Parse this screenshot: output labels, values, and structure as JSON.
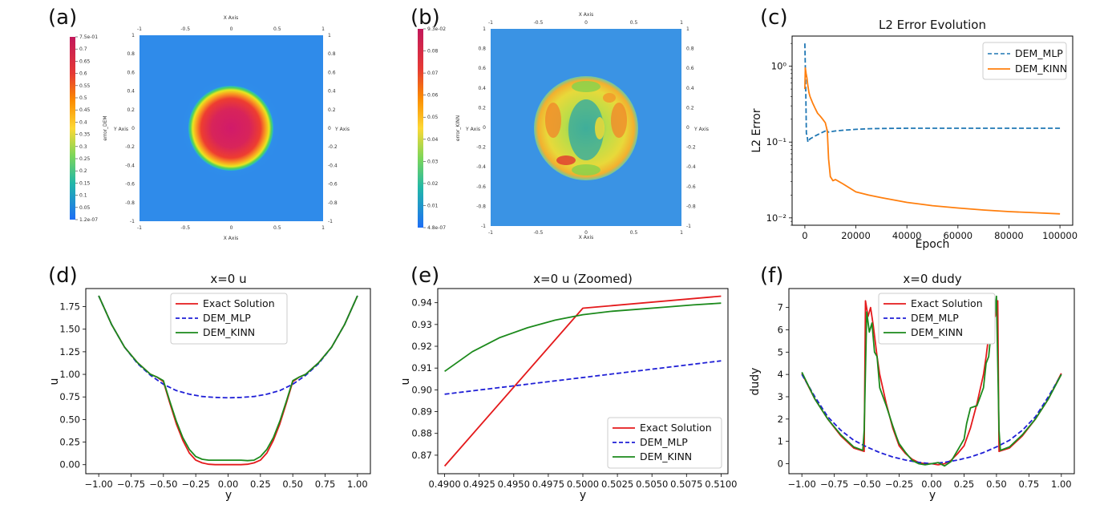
{
  "panels": {
    "a": "(a)",
    "b": "(b)",
    "c": "(c)",
    "d": "(d)",
    "e": "(e)",
    "f": "(f)"
  },
  "colors": {
    "exact": "#e41a1c",
    "dem_mlp": "#1f1fd6",
    "dem_kinn": "#1c8a1c",
    "c_mlp": "#1f77b4",
    "c_kinn": "#ff7f0e"
  },
  "chart_data": [
    {
      "id": "a",
      "type": "heatmap",
      "title": "",
      "xlabel": "X Axis",
      "ylabel": "Y Axis",
      "x_ticks": [
        "-1",
        "-0.5",
        "0",
        "0.5",
        "1"
      ],
      "y_ticks": [
        "1",
        "0.8",
        "0.6",
        "0.4",
        "0.2",
        "0",
        "-0.2",
        "-0.4",
        "-0.6",
        "-0.8",
        "-1"
      ],
      "colorbar_label": "error_DEM",
      "colorbar_ticks": [
        "7.5e-01",
        "0.7",
        "0.65",
        "0.6",
        "0.55",
        "0.5",
        "0.45",
        "0.4",
        "0.35",
        "0.3",
        "0.25",
        "0.2",
        "0.15",
        "0.1",
        "0.05",
        "1.2e-07"
      ]
    },
    {
      "id": "b",
      "type": "heatmap",
      "title": "",
      "xlabel": "X Axis",
      "ylabel": "Y Axis",
      "x_ticks": [
        "-1",
        "-0.5",
        "0",
        "0.5",
        "1"
      ],
      "y_ticks": [
        "1",
        "0.8",
        "0.6",
        "0.4",
        "0.2",
        "0",
        "-0.2",
        "-0.4",
        "-0.6",
        "-0.8",
        "-1"
      ],
      "colorbar_label": "error_KINN",
      "colorbar_ticks": [
        "9.3e-02",
        "0.08",
        "0.07",
        "0.06",
        "0.05",
        "0.04",
        "0.03",
        "0.02",
        "0.01",
        "4.8e-07"
      ]
    },
    {
      "id": "c",
      "type": "line",
      "title": "L2 Error Evolution",
      "xlabel": "Epoch",
      "ylabel": "L2 Error",
      "yscale": "log",
      "xlim": [
        -5000,
        105000
      ],
      "ylim": [
        0.008,
        2.5
      ],
      "x_ticks": [
        "0",
        "20000",
        "40000",
        "60000",
        "80000",
        "100000"
      ],
      "x_tick_values": [
        0,
        20000,
        40000,
        60000,
        80000,
        100000
      ],
      "y_ticks": [
        "10⁰",
        "10⁻¹",
        "10⁻²"
      ],
      "y_tick_values": [
        1,
        0.1,
        0.01
      ],
      "legend_position": "top-right",
      "series": [
        {
          "name": "DEM_MLP",
          "style": "dashed",
          "x": [
            0,
            300,
            600,
            900,
            1200,
            1600,
            2000,
            3000,
            4000,
            5000,
            6000,
            7000,
            8000,
            8500,
            9000,
            10000,
            12000,
            15000,
            20000,
            25000,
            30000,
            40000,
            50000,
            60000,
            70000,
            80000,
            90000,
            100000
          ],
          "y": [
            2.0,
            0.6,
            0.13,
            0.12,
            0.1,
            0.105,
            0.11,
            0.115,
            0.12,
            0.125,
            0.13,
            0.135,
            0.14,
            0.15,
            0.135,
            0.137,
            0.14,
            0.143,
            0.147,
            0.15,
            0.151,
            0.152,
            0.152,
            0.152,
            0.152,
            0.152,
            0.152,
            0.152
          ]
        },
        {
          "name": "DEM_KINN",
          "style": "solid",
          "x": [
            0,
            200,
            500,
            800,
            1200,
            1600,
            2000,
            3000,
            4000,
            5000,
            6000,
            7000,
            8000,
            8800,
            9300,
            10000,
            11000,
            12000,
            15000,
            20000,
            25000,
            30000,
            40000,
            50000,
            60000,
            70000,
            80000,
            90000,
            100000
          ],
          "y": [
            0.5,
            0.95,
            0.8,
            0.7,
            0.55,
            0.45,
            0.4,
            0.33,
            0.28,
            0.24,
            0.22,
            0.2,
            0.18,
            0.14,
            0.06,
            0.035,
            0.031,
            0.032,
            0.028,
            0.022,
            0.02,
            0.0185,
            0.016,
            0.0145,
            0.0135,
            0.0127,
            0.0121,
            0.0117,
            0.0113
          ]
        }
      ]
    },
    {
      "id": "d",
      "type": "line",
      "title": "x=0 u",
      "xlabel": "y",
      "ylabel": "u",
      "xlim": [
        -1.1,
        1.1
      ],
      "ylim": [
        -0.1,
        1.95
      ],
      "x_ticks": [
        "−1.00",
        "−0.75",
        "−0.50",
        "−0.25",
        "0.00",
        "0.25",
        "0.50",
        "0.75",
        "1.00"
      ],
      "x_tick_values": [
        -1,
        -0.75,
        -0.5,
        -0.25,
        0,
        0.25,
        0.5,
        0.75,
        1
      ],
      "y_ticks": [
        "0.00",
        "0.25",
        "0.50",
        "0.75",
        "1.00",
        "1.25",
        "1.50",
        "1.75"
      ],
      "y_tick_values": [
        0,
        0.25,
        0.5,
        0.75,
        1,
        1.25,
        1.5,
        1.75
      ],
      "legend_position": "upper-center",
      "series": [
        {
          "name": "Exact Solution",
          "style": "solid",
          "x": [
            -1,
            -0.9,
            -0.8,
            -0.7,
            -0.6,
            -0.55,
            -0.5,
            -0.45,
            -0.4,
            -0.35,
            -0.3,
            -0.25,
            -0.2,
            -0.15,
            -0.1,
            0,
            0.1,
            0.15,
            0.2,
            0.25,
            0.3,
            0.35,
            0.4,
            0.45,
            0.5,
            0.55,
            0.6,
            0.7,
            0.8,
            0.9,
            1
          ],
          "y": [
            1.87,
            1.55,
            1.3,
            1.13,
            1.0,
            0.97,
            0.92,
            0.68,
            0.45,
            0.27,
            0.13,
            0.05,
            0.02,
            0.005,
            0.0,
            0.0,
            0.0,
            0.005,
            0.02,
            0.05,
            0.13,
            0.27,
            0.45,
            0.68,
            0.92,
            0.97,
            1.0,
            1.13,
            1.3,
            1.55,
            1.87
          ]
        },
        {
          "name": "DEM_MLP",
          "style": "dashed",
          "x": [
            -1,
            -0.9,
            -0.8,
            -0.7,
            -0.6,
            -0.5,
            -0.4,
            -0.3,
            -0.2,
            -0.1,
            0,
            0.1,
            0.2,
            0.3,
            0.4,
            0.5,
            0.6,
            0.7,
            0.8,
            0.9,
            1
          ],
          "y": [
            1.87,
            1.55,
            1.3,
            1.12,
            0.99,
            0.89,
            0.82,
            0.78,
            0.755,
            0.745,
            0.74,
            0.745,
            0.755,
            0.78,
            0.82,
            0.89,
            0.99,
            1.12,
            1.3,
            1.55,
            1.87
          ]
        },
        {
          "name": "DEM_KINN",
          "style": "solid",
          "x": [
            -1,
            -0.9,
            -0.8,
            -0.7,
            -0.6,
            -0.55,
            -0.5,
            -0.45,
            -0.4,
            -0.35,
            -0.3,
            -0.25,
            -0.2,
            -0.15,
            -0.1,
            0,
            0.1,
            0.15,
            0.2,
            0.25,
            0.3,
            0.35,
            0.4,
            0.45,
            0.5,
            0.55,
            0.6,
            0.7,
            0.8,
            0.9,
            1
          ],
          "y": [
            1.87,
            1.55,
            1.3,
            1.13,
            1.0,
            0.97,
            0.93,
            0.7,
            0.48,
            0.3,
            0.17,
            0.09,
            0.06,
            0.05,
            0.05,
            0.05,
            0.05,
            0.045,
            0.05,
            0.09,
            0.17,
            0.3,
            0.48,
            0.7,
            0.93,
            0.97,
            1.0,
            1.13,
            1.3,
            1.55,
            1.87
          ]
        }
      ]
    },
    {
      "id": "e",
      "type": "line",
      "title": "x=0 u (Zoomed)",
      "xlabel": "y",
      "ylabel": "u",
      "xlim": [
        0.4895,
        0.5105
      ],
      "ylim": [
        0.8615,
        0.9465
      ],
      "x_ticks": [
        "0.4900",
        "0.4925",
        "0.4950",
        "0.4975",
        "0.5000",
        "0.5025",
        "0.5050",
        "0.5075",
        "0.5100"
      ],
      "x_tick_values": [
        0.49,
        0.4925,
        0.495,
        0.4975,
        0.5,
        0.5025,
        0.505,
        0.5075,
        0.51
      ],
      "y_ticks": [
        "0.87",
        "0.88",
        "0.89",
        "0.90",
        "0.91",
        "0.92",
        "0.93",
        "0.94"
      ],
      "y_tick_values": [
        0.87,
        0.88,
        0.89,
        0.9,
        0.91,
        0.92,
        0.93,
        0.94
      ],
      "legend_position": "lower-right",
      "series": [
        {
          "name": "Exact Solution",
          "style": "solid",
          "x": [
            0.49,
            0.5,
            0.51
          ],
          "y": [
            0.865,
            0.9375,
            0.943
          ]
        },
        {
          "name": "DEM_MLP",
          "style": "dashed",
          "x": [
            0.49,
            0.51
          ],
          "y": [
            0.898,
            0.9133
          ]
        },
        {
          "name": "DEM_KINN",
          "style": "solid",
          "x": [
            0.49,
            0.492,
            0.494,
            0.496,
            0.498,
            0.5,
            0.502,
            0.504,
            0.506,
            0.508,
            0.51
          ],
          "y": [
            0.9085,
            0.9175,
            0.924,
            0.9285,
            0.932,
            0.9345,
            0.936,
            0.937,
            0.938,
            0.939,
            0.9398
          ]
        }
      ]
    },
    {
      "id": "f",
      "type": "line",
      "title": "x=0 dudy",
      "xlabel": "y",
      "ylabel": "dudy",
      "xlim": [
        -1.1,
        1.1
      ],
      "ylim": [
        -0.45,
        7.85
      ],
      "x_ticks": [
        "−1.00",
        "−0.75",
        "−0.50",
        "−0.25",
        "0.00",
        "0.25",
        "0.50",
        "0.75",
        "1.00"
      ],
      "x_tick_values": [
        -1,
        -0.75,
        -0.5,
        -0.25,
        0,
        0.25,
        0.5,
        0.75,
        1
      ],
      "y_ticks": [
        "0",
        "1",
        "2",
        "3",
        "4",
        "5",
        "6",
        "7"
      ],
      "y_tick_values": [
        0,
        1,
        2,
        3,
        4,
        5,
        6,
        7
      ],
      "legend_position": "upper-center",
      "series": [
        {
          "name": "Exact Solution",
          "style": "solid",
          "x": [
            -1,
            -0.9,
            -0.8,
            -0.7,
            -0.6,
            -0.52,
            -0.51,
            -0.49,
            -0.47,
            -0.45,
            -0.42,
            -0.4,
            -0.35,
            -0.3,
            -0.25,
            -0.2,
            -0.15,
            -0.1,
            -0.05,
            0,
            0.05,
            0.1,
            0.15,
            0.2,
            0.25,
            0.3,
            0.35,
            0.4,
            0.42,
            0.45,
            0.47,
            0.49,
            0.51,
            0.52,
            0.6,
            0.7,
            0.8,
            0.9,
            1
          ],
          "y": [
            4.05,
            2.9,
            2.0,
            1.25,
            0.7,
            0.55,
            7.3,
            6.6,
            7.0,
            6.2,
            4.8,
            4.0,
            2.7,
            1.6,
            0.8,
            0.45,
            0.2,
            0.05,
            0.0,
            0.0,
            -0.05,
            0.0,
            0.15,
            0.45,
            0.8,
            1.6,
            2.7,
            4.0,
            4.8,
            6.2,
            7.0,
            6.6,
            7.3,
            0.55,
            0.7,
            1.25,
            2.0,
            2.9,
            4.05
          ]
        },
        {
          "name": "DEM_MLP",
          "style": "dashed",
          "x": [
            -1,
            -0.9,
            -0.8,
            -0.7,
            -0.6,
            -0.5,
            -0.4,
            -0.3,
            -0.2,
            -0.1,
            0,
            0.1,
            0.2,
            0.3,
            0.4,
            0.5,
            0.6,
            0.7,
            0.8,
            0.9,
            1
          ],
          "y": [
            4.0,
            3.0,
            2.1,
            1.5,
            1.05,
            0.75,
            0.5,
            0.3,
            0.16,
            0.06,
            0.0,
            0.06,
            0.16,
            0.3,
            0.5,
            0.75,
            1.05,
            1.5,
            2.1,
            3.0,
            4.0
          ]
        },
        {
          "name": "DEM_KINN",
          "style": "solid",
          "x": [
            -1,
            -0.9,
            -0.8,
            -0.7,
            -0.6,
            -0.53,
            -0.52,
            -0.5,
            -0.48,
            -0.46,
            -0.44,
            -0.42,
            -0.4,
            -0.35,
            -0.3,
            -0.27,
            -0.25,
            -0.2,
            -0.15,
            -0.1,
            -0.05,
            0,
            0.05,
            0.1,
            0.15,
            0.2,
            0.25,
            0.27,
            0.3,
            0.35,
            0.4,
            0.42,
            0.44,
            0.46,
            0.48,
            0.5,
            0.52,
            0.53,
            0.6,
            0.7,
            0.8,
            0.9,
            1
          ],
          "y": [
            4.1,
            2.9,
            2.0,
            1.3,
            0.75,
            0.6,
            1.5,
            6.8,
            5.9,
            6.3,
            5.0,
            4.8,
            3.4,
            2.6,
            1.7,
            1.2,
            0.9,
            0.5,
            0.15,
            0.0,
            -0.05,
            0.0,
            0.05,
            -0.1,
            0.1,
            0.6,
            1.1,
            1.8,
            2.5,
            2.6,
            3.4,
            4.5,
            4.8,
            6.0,
            6.3,
            7.5,
            1.5,
            0.6,
            0.75,
            1.3,
            2.0,
            2.9,
            4.0
          ]
        }
      ]
    }
  ]
}
